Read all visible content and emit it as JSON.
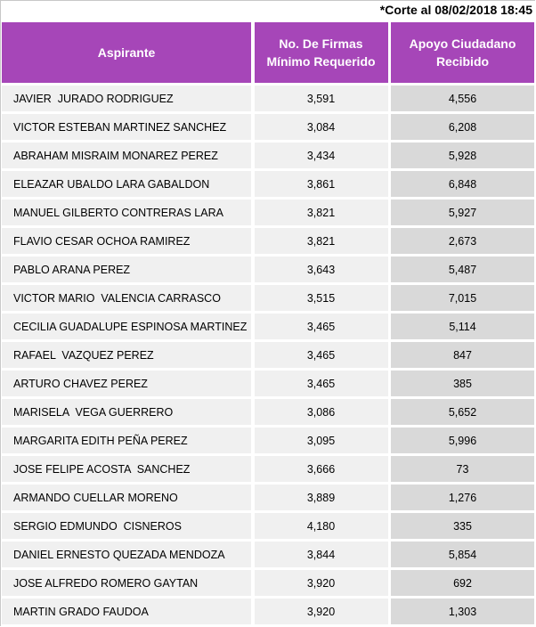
{
  "cutoff": "*Corte al 08/02/2018 18:45",
  "headers": {
    "aspirante": "Aspirante",
    "firmas_line1": "No. De Firmas",
    "firmas_line2": "Mínimo Requerido",
    "apoyo_line1": "Apoyo Ciudadano",
    "apoyo_line2": "Recibido"
  },
  "colors": {
    "header_bg": "#a646b8",
    "row_bg": "#f0f0f0",
    "apoyo_bg": "#d9d9d9"
  },
  "rows": [
    {
      "name": "JAVIER  JURADO RODRIGUEZ",
      "minimo": "3,591",
      "apoyo": "4,556"
    },
    {
      "name": "VICTOR ESTEBAN MARTINEZ SANCHEZ",
      "minimo": "3,084",
      "apoyo": "6,208"
    },
    {
      "name": "ABRAHAM MISRAIM MONAREZ PEREZ",
      "minimo": "3,434",
      "apoyo": "5,928"
    },
    {
      "name": "ELEAZAR UBALDO LARA GABALDON",
      "minimo": "3,861",
      "apoyo": "6,848"
    },
    {
      "name": "MANUEL GILBERTO CONTRERAS LARA",
      "minimo": "3,821",
      "apoyo": "5,927"
    },
    {
      "name": "FLAVIO CESAR OCHOA RAMIREZ",
      "minimo": "3,821",
      "apoyo": "2,673"
    },
    {
      "name": "PABLO ARANA PEREZ",
      "minimo": "3,643",
      "apoyo": "5,487"
    },
    {
      "name": "VICTOR MARIO  VALENCIA CARRASCO",
      "minimo": "3,515",
      "apoyo": "7,015"
    },
    {
      "name": "CECILIA GUADALUPE ESPINOSA MARTINEZ",
      "minimo": "3,465",
      "apoyo": "5,114"
    },
    {
      "name": "RAFAEL  VAZQUEZ PEREZ",
      "minimo": "3,465",
      "apoyo": "847"
    },
    {
      "name": "ARTURO CHAVEZ PEREZ",
      "minimo": "3,465",
      "apoyo": "385"
    },
    {
      "name": "MARISELA  VEGA GUERRERO",
      "minimo": "3,086",
      "apoyo": "5,652"
    },
    {
      "name": "MARGARITA EDITH PEÑA PEREZ",
      "minimo": "3,095",
      "apoyo": "5,996"
    },
    {
      "name": "JOSE FELIPE ACOSTA  SANCHEZ",
      "minimo": "3,666",
      "apoyo": "73"
    },
    {
      "name": "ARMANDO CUELLAR MORENO",
      "minimo": "3,889",
      "apoyo": "1,276"
    },
    {
      "name": "SERGIO EDMUNDO  CISNEROS",
      "minimo": "4,180",
      "apoyo": "335"
    },
    {
      "name": "DANIEL ERNESTO QUEZADA MENDOZA",
      "minimo": "3,844",
      "apoyo": "5,854"
    },
    {
      "name": "JOSE ALFREDO ROMERO GAYTAN",
      "minimo": "3,920",
      "apoyo": "692"
    },
    {
      "name": "MARTIN GRADO FAUDOA",
      "minimo": "3,920",
      "apoyo": "1,303"
    }
  ]
}
